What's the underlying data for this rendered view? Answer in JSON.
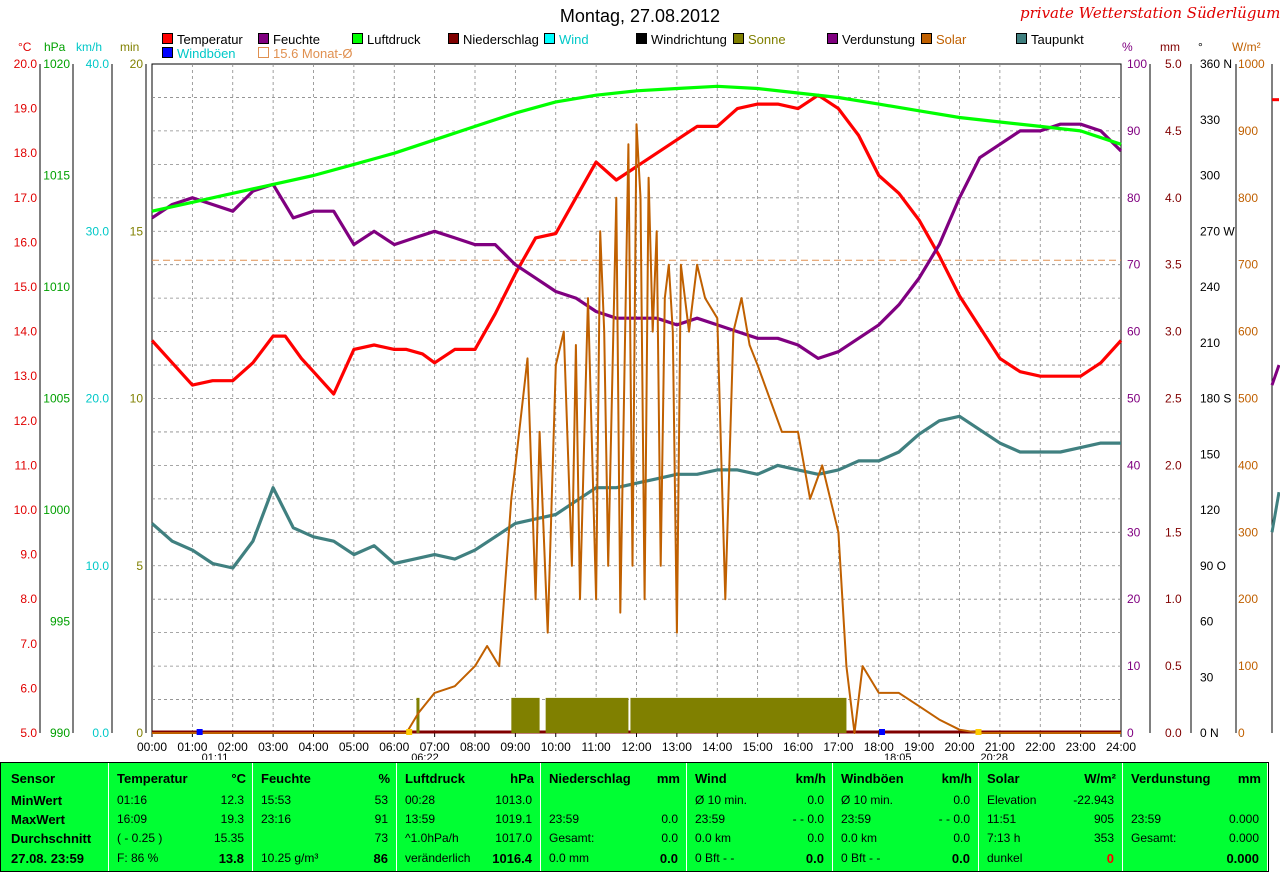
{
  "header": {
    "title": "Montag, 27.08.2012",
    "brand": "private Wetterstation Süderlügum"
  },
  "legend": [
    {
      "label": "Temperatur",
      "color": "#ff0000"
    },
    {
      "label": "Feuchte",
      "color": "#800080"
    },
    {
      "label": "Luftdruck",
      "color": "#00ff00"
    },
    {
      "label": "Niederschlag",
      "color": "#800000"
    },
    {
      "label": "Wind",
      "color": "#00ffff"
    },
    {
      "label": "Windrichtung",
      "color": "#000000"
    },
    {
      "label": "Sonne",
      "color": "#808000"
    },
    {
      "label": "Verdunstung",
      "color": "#800080"
    },
    {
      "label": "Solar",
      "color": "#c06000"
    },
    {
      "label": "Taupunkt",
      "color": "#408080"
    },
    {
      "label": "Windböen",
      "color": "#0000ff"
    },
    {
      "label": "15.6 Monat-Ø",
      "color": "#e09050"
    }
  ],
  "axis_units": {
    "temp": "°C",
    "hpa": "hPa",
    "kmh": "km/h",
    "min": "min",
    "pct": "%",
    "mm": "mm",
    "deg": "°",
    "wm2": "W/m²"
  },
  "chart_data": {
    "type": "line",
    "x": {
      "unit": "hours",
      "range": [
        0,
        24
      ],
      "ticks": [
        "00:00",
        "01:00",
        "02:00",
        "03:00",
        "04:00",
        "05:00",
        "06:00",
        "07:00",
        "08:00",
        "09:00",
        "10:00",
        "11:00",
        "12:00",
        "13:00",
        "14:00",
        "15:00",
        "16:00",
        "17:00",
        "18:00",
        "19:00",
        "20:00",
        "21:00",
        "22:00",
        "23:00",
        "24:00"
      ]
    },
    "axes": {
      "temp": {
        "range": [
          5,
          20
        ],
        "ticks": [
          "5.0",
          "6.0",
          "7.0",
          "8.0",
          "9.0",
          "10.0",
          "11.0",
          "12.0",
          "13.0",
          "14.0",
          "15.0",
          "16.0",
          "17.0",
          "18.0",
          "19.0",
          "20.0"
        ],
        "color": "#e00000"
      },
      "hpa": {
        "range": [
          990,
          1020
        ],
        "ticks": [
          "990",
          "995",
          "1000",
          "1005",
          "1010",
          "1015",
          "1020"
        ],
        "color": "#00a000"
      },
      "kmh": {
        "range": [
          0,
          40
        ],
        "ticks": [
          "0.0",
          "10.0",
          "20.0",
          "30.0",
          "40.0"
        ],
        "color": "#00c8c8"
      },
      "min": {
        "range": [
          0,
          20
        ],
        "ticks": [
          "0",
          "5",
          "10",
          "15",
          "20"
        ],
        "color": "#808000"
      },
      "pct": {
        "range": [
          0,
          100
        ],
        "ticks": [
          "0",
          "10",
          "20",
          "30",
          "40",
          "50",
          "60",
          "70",
          "80",
          "90",
          "100"
        ],
        "color": "#800080"
      },
      "mm": {
        "range": [
          0,
          5
        ],
        "ticks": [
          "0.0",
          "0.5",
          "1.0",
          "1.5",
          "2.0",
          "2.5",
          "3.0",
          "3.5",
          "4.0",
          "4.5",
          "5.0"
        ],
        "color": "#800000"
      },
      "deg": {
        "range": [
          0,
          360
        ],
        "ticks": [
          "0 N",
          "30",
          "60",
          "90 O",
          "120",
          "150",
          "180 S",
          "210",
          "240",
          "270 W",
          "300",
          "330",
          "360 N"
        ],
        "color": "#000000"
      },
      "wm2": {
        "range": [
          0,
          1000
        ],
        "ticks": [
          "0",
          "100",
          "200",
          "300",
          "400",
          "500",
          "600",
          "700",
          "800",
          "900",
          "1000"
        ],
        "color": "#c06000"
      }
    },
    "series": [
      {
        "name": "Temperatur",
        "axis": "temp",
        "color": "#ff0000",
        "x": [
          0,
          0.5,
          1,
          1.5,
          2,
          2.5,
          3,
          3.3,
          3.7,
          4,
          4.5,
          5,
          5.5,
          6,
          6.3,
          6.7,
          7,
          7.5,
          8,
          8.5,
          9,
          9.5,
          10,
          10.5,
          11,
          11.5,
          12,
          12.5,
          13,
          13.5,
          14,
          14.5,
          15,
          15.5,
          16,
          16.5,
          17,
          17.5,
          18,
          18.5,
          19,
          19.5,
          20,
          20.5,
          21,
          21.5,
          22,
          22.5,
          23,
          23.5,
          24
        ],
        "y": [
          13.8,
          13.3,
          12.8,
          12.9,
          12.9,
          13.3,
          13.9,
          13.9,
          13.4,
          13.1,
          12.6,
          13.6,
          13.7,
          13.6,
          13.6,
          13.5,
          13.3,
          13.6,
          13.6,
          14.4,
          15.3,
          16.1,
          16.2,
          17.0,
          17.8,
          17.4,
          17.7,
          18.0,
          18.3,
          18.6,
          18.6,
          19.0,
          19.1,
          19.1,
          19.0,
          19.3,
          19.0,
          18.4,
          17.5,
          17.1,
          16.5,
          15.7,
          14.8,
          14.1,
          13.4,
          13.1,
          13.0,
          13.0,
          13.0,
          13.3,
          13.8
        ]
      },
      {
        "name": "Feuchte",
        "axis": "pct",
        "color": "#800080",
        "x": [
          0,
          0.5,
          1,
          1.5,
          2,
          2.5,
          3,
          3.5,
          4,
          4.5,
          5,
          5.5,
          6,
          6.5,
          7,
          7.5,
          8,
          8.5,
          9,
          9.5,
          10,
          10.5,
          11,
          11.5,
          12,
          12.5,
          13,
          13.5,
          14,
          14.5,
          15,
          15.5,
          16,
          16.5,
          17,
          17.5,
          18,
          18.5,
          19,
          19.5,
          20,
          20.5,
          21,
          21.5,
          22,
          22.5,
          23,
          23.5,
          24
        ],
        "y": [
          77,
          79,
          80,
          79,
          78,
          81,
          82,
          77,
          78,
          78,
          73,
          75,
          73,
          74,
          75,
          74,
          73,
          73,
          70,
          68,
          66,
          65,
          63,
          62,
          62,
          62,
          61,
          62,
          61,
          60,
          59,
          59,
          58,
          56,
          57,
          59,
          61,
          64,
          68,
          73,
          80,
          86,
          88,
          90,
          90,
          91,
          91,
          90,
          87
        ]
      },
      {
        "name": "Luftdruck",
        "axis": "hpa",
        "color": "#00ff00",
        "x": [
          0,
          1,
          2,
          3,
          4,
          5,
          6,
          7,
          8,
          9,
          10,
          11,
          12,
          13,
          14,
          15,
          16,
          17,
          18,
          19,
          20,
          21,
          22,
          23,
          24
        ],
        "y": [
          1013.4,
          1013.8,
          1014.2,
          1014.6,
          1015.0,
          1015.5,
          1016.0,
          1016.6,
          1017.2,
          1017.8,
          1018.3,
          1018.6,
          1018.8,
          1018.9,
          1019.0,
          1018.9,
          1018.7,
          1018.5,
          1018.2,
          1017.9,
          1017.6,
          1017.4,
          1017.2,
          1017.0,
          1016.4
        ]
      },
      {
        "name": "Taupunkt",
        "axis": "temp",
        "color": "#408080",
        "x": [
          0,
          0.5,
          1,
          1.5,
          2,
          2.5,
          3,
          3.5,
          4,
          4.5,
          5,
          5.5,
          6,
          6.5,
          7,
          7.5,
          8,
          8.5,
          9,
          9.5,
          10,
          10.5,
          11,
          11.5,
          12,
          12.5,
          13,
          13.5,
          14,
          14.5,
          15,
          15.5,
          16,
          16.5,
          17,
          17.5,
          18,
          18.5,
          19,
          19.5,
          20,
          20.5,
          21,
          21.5,
          22,
          22.5,
          23,
          23.5,
          24
        ],
        "y": [
          9.7,
          9.3,
          9.1,
          8.8,
          8.7,
          9.3,
          10.5,
          9.6,
          9.4,
          9.3,
          9.0,
          9.2,
          8.8,
          8.9,
          9.0,
          8.9,
          9.1,
          9.4,
          9.7,
          9.8,
          9.9,
          10.2,
          10.5,
          10.5,
          10.6,
          10.7,
          10.8,
          10.8,
          10.9,
          10.9,
          10.8,
          11.0,
          10.9,
          10.8,
          10.9,
          11.1,
          11.1,
          11.3,
          11.7,
          12.0,
          12.1,
          11.8,
          11.5,
          11.3,
          11.3,
          11.3,
          11.4,
          11.5,
          11.5
        ]
      },
      {
        "name": "Solar",
        "axis": "wm2",
        "color": "#c06000",
        "x": [
          0,
          6.3,
          6.6,
          7,
          7.5,
          8,
          8.3,
          8.6,
          8.9,
          9.0,
          9.3,
          9.5,
          9.6,
          9.8,
          10,
          10.2,
          10.4,
          10.5,
          10.6,
          10.8,
          11,
          11.1,
          11.2,
          11.3,
          11.5,
          11.6,
          11.8,
          11.9,
          12,
          12.1,
          12.2,
          12.3,
          12.4,
          12.5,
          12.6,
          12.7,
          12.8,
          12.9,
          13,
          13.1,
          13.3,
          13.5,
          13.7,
          14,
          14.2,
          14.4,
          14.6,
          14.8,
          15,
          15.3,
          15.6,
          16,
          16.3,
          16.6,
          17,
          17.2,
          17.4,
          17.6,
          18,
          18.5,
          19,
          19.5,
          20,
          20.5,
          24
        ],
        "y": [
          0,
          0,
          30,
          60,
          70,
          100,
          130,
          100,
          350,
          400,
          560,
          200,
          450,
          150,
          550,
          600,
          250,
          580,
          200,
          650,
          200,
          750,
          600,
          250,
          800,
          180,
          880,
          250,
          910,
          800,
          200,
          830,
          600,
          750,
          250,
          650,
          700,
          600,
          150,
          700,
          600,
          700,
          650,
          620,
          200,
          600,
          650,
          580,
          550,
          500,
          450,
          450,
          350,
          400,
          300,
          100,
          0,
          100,
          60,
          60,
          40,
          20,
          5,
          0,
          0
        ]
      }
    ],
    "sonne_blocks": [
      [
        8.9,
        9.6
      ],
      [
        9.75,
        11.8
      ],
      [
        11.85,
        17.2
      ]
    ],
    "sonne_marker_6": 0.8,
    "monat_avg": {
      "label": "15.6 Monat-Ø",
      "value": 15.6,
      "axis": "temp"
    },
    "markers": [
      {
        "time": "01:11",
        "x": 1.18
      },
      {
        "time": "06:22",
        "x": 6.37
      },
      {
        "time": "18:05",
        "x": 18.08
      },
      {
        "time": "20:28",
        "x": 20.47
      }
    ]
  },
  "panel": {
    "sensor": {
      "title": "Sensor",
      "rows": [
        "MinWert",
        "MaxWert",
        "Durchschnitt",
        "27.08. 23:59"
      ]
    },
    "temperatur": {
      "title": "Temperatur",
      "unit": "°C",
      "rows": [
        [
          "01:16",
          "12.3"
        ],
        [
          "16:09",
          "19.3"
        ],
        [
          "( - 0.25 )",
          "15.35"
        ],
        [
          "F: 86 %",
          "13.8"
        ]
      ]
    },
    "feuchte": {
      "title": "Feuchte",
      "unit": "%",
      "rows": [
        [
          "15:53",
          "53"
        ],
        [
          "23:16",
          "91"
        ],
        [
          "",
          "73"
        ],
        [
          "10.25 g/m³",
          "86"
        ]
      ]
    },
    "luftdruck": {
      "title": "Luftdruck",
      "unit": "hPa",
      "rows": [
        [
          "00:28",
          "1013.0"
        ],
        [
          "13:59",
          "1019.1"
        ],
        [
          "^1.0hPa/h",
          "1017.0"
        ],
        [
          "veränderlich",
          "1016.4"
        ]
      ]
    },
    "niederschlag": {
      "title": "Niederschlag",
      "unit": "mm",
      "rows": [
        [
          "",
          ""
        ],
        [
          "23:59",
          "0.0"
        ],
        [
          "Gesamt:",
          "0.0"
        ],
        [
          "0.0 mm",
          "0.0"
        ]
      ]
    },
    "wind": {
      "title": "Wind",
      "unit": "km/h",
      "rows": [
        [
          "Ø 10 min.",
          "0.0"
        ],
        [
          "23:59",
          "- - 0.0"
        ],
        [
          "0.0 km",
          "0.0"
        ],
        [
          "0 Bft - -",
          "0.0"
        ]
      ]
    },
    "windboeen": {
      "title": "Windböen",
      "unit": "km/h",
      "rows": [
        [
          "Ø 10 min.",
          "0.0"
        ],
        [
          "23:59",
          "- - 0.0"
        ],
        [
          "0.0 km",
          "0.0"
        ],
        [
          "0 Bft - -",
          "0.0"
        ]
      ]
    },
    "solar": {
      "title": "Solar",
      "unit": "W/m²",
      "rows": [
        [
          "Elevation",
          "-22.943"
        ],
        [
          "11:51",
          "905"
        ],
        [
          "7:13 h",
          "353"
        ],
        [
          "dunkel",
          "0"
        ]
      ]
    },
    "verdunstung": {
      "title": "Verdunstung",
      "unit": "mm",
      "rows": [
        [
          "",
          ""
        ],
        [
          "23:59",
          "0.000"
        ],
        [
          "Gesamt:",
          "0.000"
        ],
        [
          "",
          "0.000"
        ]
      ]
    }
  }
}
